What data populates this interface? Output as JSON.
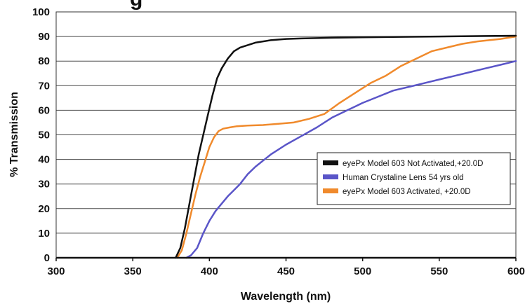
{
  "chart_data": {
    "type": "line",
    "title": "g",
    "xlabel": "Wavelength (nm)",
    "ylabel": "% Transmission",
    "xlim": [
      300,
      600
    ],
    "ylim": [
      0,
      100
    ],
    "x_ticks": [
      "300",
      "350",
      "400",
      "450",
      "500",
      "550",
      "600"
    ],
    "y_ticks": [
      "0",
      "10",
      "20",
      "30",
      "40",
      "50",
      "60",
      "70",
      "80",
      "90",
      "100"
    ],
    "grid": "horizontal",
    "legend_position": "lower-right",
    "series": [
      {
        "name": "eyePx Model 603 Not Activated,+20.0D",
        "color": "#111111",
        "x": [
          378,
          381,
          384,
          387,
          390,
          393,
          396,
          399,
          402,
          405,
          408,
          412,
          416,
          420,
          425,
          430,
          440,
          450,
          460,
          480,
          500,
          520,
          550,
          580,
          600
        ],
        "y": [
          0,
          4,
          12,
          22,
          32,
          42,
          50,
          58,
          66,
          73,
          77,
          81,
          84,
          85.5,
          86.5,
          87.5,
          88.5,
          89,
          89.2,
          89.5,
          89.7,
          89.8,
          90,
          90.2,
          90.3
        ]
      },
      {
        "name": "Human Crystaline Lens 54 yrs old",
        "color": "#5a55c8",
        "x": [
          385,
          388,
          392,
          396,
          400,
          404,
          408,
          412,
          416,
          420,
          425,
          430,
          440,
          450,
          460,
          470,
          480,
          490,
          500,
          510,
          520,
          530,
          540,
          550,
          560,
          570,
          580,
          590,
          600
        ],
        "y": [
          0,
          1,
          4,
          10,
          15,
          19,
          22,
          25,
          27.5,
          30,
          34,
          37,
          42,
          46,
          49.5,
          53,
          57,
          60,
          63,
          65.5,
          68,
          69.5,
          71,
          72.5,
          74,
          75.5,
          77,
          78.5,
          80
        ]
      },
      {
        "name": "eyePx Model 603 Activated, +20.0D",
        "color": "#f08a2c",
        "x": [
          379,
          382,
          385,
          388,
          391,
          394,
          397,
          400,
          403,
          406,
          409,
          413,
          418,
          425,
          435,
          445,
          455,
          465,
          475,
          485,
          495,
          505,
          515,
          525,
          535,
          545,
          555,
          565,
          575,
          590,
          600
        ],
        "y": [
          0,
          3,
          10,
          18,
          26,
          33,
          39,
          45,
          49,
          51.5,
          52.5,
          53,
          53.5,
          53.8,
          54,
          54.5,
          55,
          56.5,
          58.5,
          63,
          67,
          71,
          74,
          78,
          81,
          84,
          85.5,
          87,
          88,
          89,
          90
        ]
      }
    ]
  }
}
